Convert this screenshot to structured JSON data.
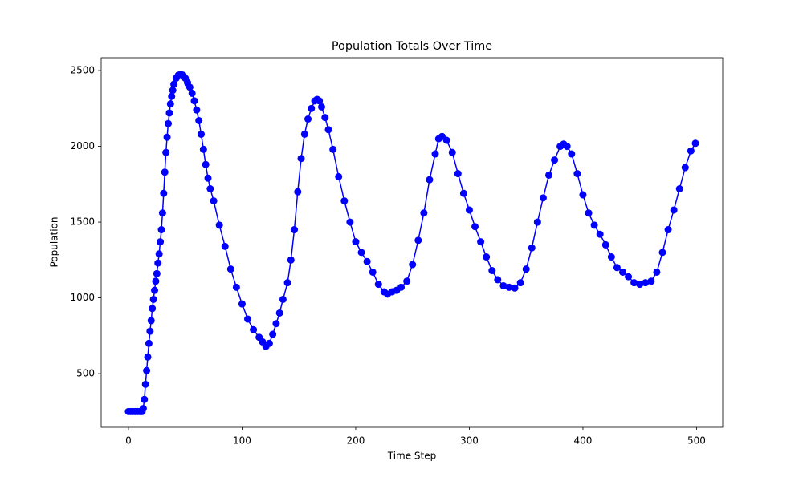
{
  "chart_data": {
    "type": "line",
    "title": "Population Totals Over Time",
    "xlabel": "Time Step",
    "ylabel": "Population",
    "x": [
      0,
      2,
      4,
      6,
      8,
      10,
      12,
      13,
      14,
      15,
      16,
      17,
      18,
      19,
      20,
      21,
      22,
      23,
      24,
      25,
      26,
      27,
      28,
      29,
      30,
      31,
      32,
      33,
      34,
      35,
      36,
      37,
      38,
      39,
      40,
      42,
      44,
      46,
      48,
      50,
      52,
      54,
      56,
      58,
      60,
      62,
      64,
      66,
      68,
      70,
      72,
      75,
      80,
      85,
      90,
      95,
      100,
      105,
      110,
      115,
      118,
      121,
      124,
      127,
      130,
      133,
      136,
      140,
      143,
      146,
      149,
      152,
      155,
      158,
      161,
      164,
      166,
      168,
      170,
      173,
      176,
      180,
      185,
      190,
      195,
      200,
      205,
      210,
      215,
      220,
      225,
      228,
      232,
      236,
      240,
      245,
      250,
      255,
      260,
      265,
      270,
      273,
      276,
      280,
      285,
      290,
      295,
      300,
      305,
      310,
      315,
      320,
      325,
      330,
      335,
      340,
      345,
      350,
      355,
      360,
      365,
      370,
      375,
      380,
      383,
      386,
      390,
      395,
      400,
      405,
      410,
      415,
      420,
      425,
      430,
      435,
      440,
      445,
      450,
      455,
      460,
      465,
      470,
      475,
      480,
      485,
      490,
      495,
      499
    ],
    "values": [
      250,
      250,
      250,
      250,
      250,
      250,
      250,
      270,
      330,
      430,
      520,
      610,
      700,
      780,
      850,
      930,
      990,
      1050,
      1110,
      1160,
      1230,
      1290,
      1370,
      1450,
      1560,
      1690,
      1830,
      1960,
      2060,
      2150,
      2220,
      2280,
      2330,
      2370,
      2410,
      2450,
      2470,
      2475,
      2470,
      2450,
      2420,
      2390,
      2350,
      2300,
      2240,
      2170,
      2080,
      1980,
      1880,
      1790,
      1720,
      1640,
      1480,
      1340,
      1190,
      1070,
      960,
      860,
      790,
      740,
      710,
      680,
      700,
      760,
      830,
      900,
      990,
      1100,
      1250,
      1450,
      1700,
      1920,
      2080,
      2180,
      2250,
      2300,
      2310,
      2300,
      2260,
      2190,
      2110,
      1980,
      1800,
      1640,
      1500,
      1370,
      1300,
      1240,
      1170,
      1090,
      1040,
      1025,
      1040,
      1050,
      1070,
      1110,
      1220,
      1380,
      1560,
      1780,
      1950,
      2050,
      2065,
      2040,
      1960,
      1820,
      1690,
      1580,
      1470,
      1370,
      1270,
      1180,
      1120,
      1080,
      1070,
      1065,
      1100,
      1190,
      1330,
      1500,
      1660,
      1810,
      1910,
      2000,
      2015,
      2000,
      1950,
      1820,
      1680,
      1560,
      1480,
      1420,
      1350,
      1270,
      1200,
      1170,
      1140,
      1100,
      1090,
      1100,
      1110,
      1170,
      1300,
      1450,
      1580,
      1720,
      1860,
      1970,
      2020
    ],
    "color": "#0000ff",
    "marker": true,
    "xlim": [
      -24,
      523
    ],
    "ylim": [
      146,
      2585
    ],
    "xticks": [
      0,
      100,
      200,
      300,
      400,
      500
    ],
    "yticks": [
      500,
      1000,
      1500,
      2000,
      2500
    ]
  }
}
